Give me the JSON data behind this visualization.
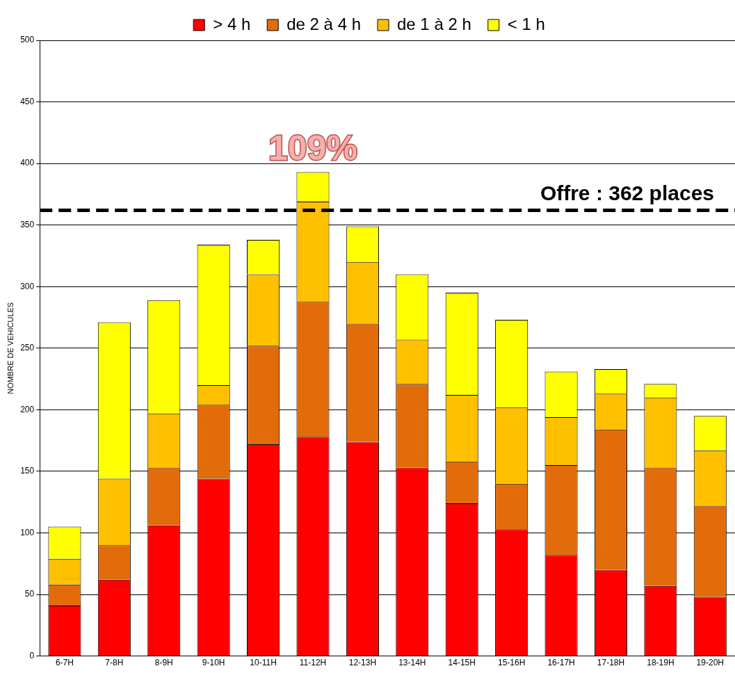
{
  "chart_data": {
    "type": "bar",
    "stacked": true,
    "ylabel": "NOMBRE DE VEHICULES",
    "categories": [
      "6-7H",
      "7-8H",
      "8-9H",
      "9-10H",
      "10-11H",
      "11-12H",
      "12-13H",
      "13-14H",
      "14-15H",
      "15-16H",
      "16-17H",
      "17-18H",
      "18-19H",
      "19-20H"
    ],
    "series": [
      {
        "name": "> 4 h",
        "color": "#ff0000",
        "values": [
          41,
          62,
          106,
          144,
          172,
          178,
          174,
          153,
          124,
          103,
          82,
          70,
          57,
          48
        ]
      },
      {
        "name": "de 2 à 4 h",
        "color": "#e36c0a",
        "values": [
          17,
          28,
          47,
          60,
          80,
          110,
          96,
          68,
          34,
          37,
          73,
          114,
          96,
          74
        ]
      },
      {
        "name": "de 1 à 2 h",
        "color": "#ffc000",
        "values": [
          21,
          54,
          44,
          16,
          58,
          81,
          50,
          36,
          54,
          62,
          39,
          29,
          57,
          45
        ]
      },
      {
        "name": "< 1 h",
        "color": "#ffff00",
        "values": [
          26,
          127,
          92,
          114,
          28,
          24,
          29,
          53,
          83,
          71,
          37,
          20,
          11,
          28
        ]
      }
    ],
    "ylim": [
      0,
      500
    ],
    "yticks": [
      0,
      50,
      100,
      150,
      200,
      250,
      300,
      350,
      400,
      450,
      500
    ],
    "grid": "y",
    "legend": "top",
    "ref_lines": [
      {
        "axis": "y",
        "value": 362,
        "label": "Offre : 362 places",
        "color": "#000000",
        "line_style": "dashed"
      }
    ],
    "annotations": [
      {
        "text": "109%",
        "x": "11-12H",
        "y": 393
      }
    ]
  }
}
